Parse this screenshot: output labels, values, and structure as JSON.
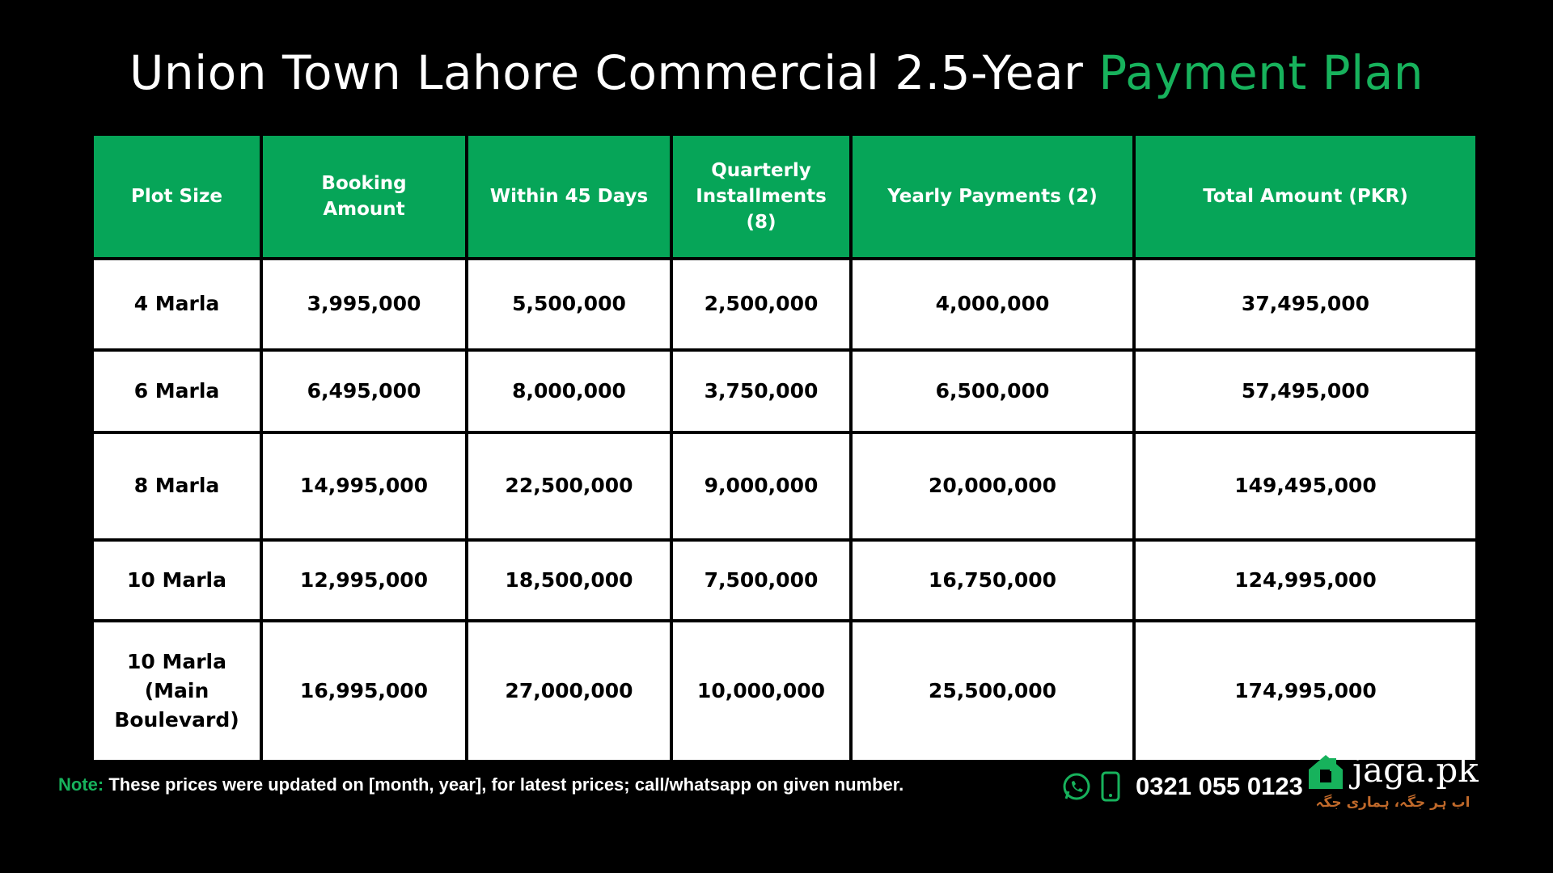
{
  "header": {
    "title": "Union Town Lahore Commercial 2.5-Year",
    "title_highlight": "Payment Plan"
  },
  "table": {
    "columns": [
      "Plot Size",
      "Booking Amount",
      "Within 45 Days",
      "Quarterly Installments (8)",
      "Yearly Payments (2)",
      "Total Amount (PKR)"
    ],
    "rows": [
      [
        "4 Marla",
        "3,995,000",
        "5,500,000",
        "2,500,000",
        "4,000,000",
        "37,495,000"
      ],
      [
        "6 Marla",
        "6,495,000",
        "8,000,000",
        "3,750,000",
        "6,500,000",
        "57,495,000"
      ],
      [
        "8 Marla",
        "14,995,000",
        "22,500,000",
        "9,000,000",
        "20,000,000",
        "149,495,000"
      ],
      [
        "10 Marla",
        "12,995,000",
        "18,500,000",
        "7,500,000",
        "16,750,000",
        "124,995,000"
      ],
      [
        "10 Marla (Main Boulevard)",
        "16,995,000",
        "27,000,000",
        "10,000,000",
        "25,500,000",
        "174,995,000"
      ]
    ]
  },
  "footer": {
    "note_label": "Note:",
    "note": "These prices were updated on [month, year], for latest prices; call/whatsapp on given number.",
    "phone": "0321 055 0123",
    "brand": "jaga.pk",
    "tagline": "اب ہر جگہ، ہماری جگہ"
  }
}
